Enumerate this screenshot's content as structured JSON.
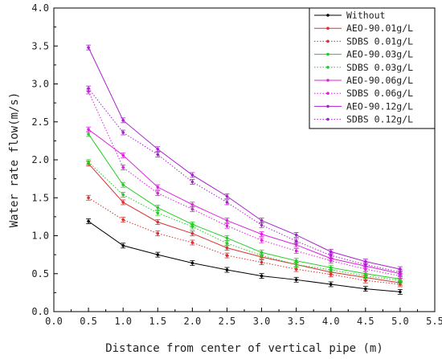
{
  "chart_data": {
    "type": "line",
    "xlabel": "Distance from center of vertical pipe (m)",
    "ylabel": "Water rate flow(m/s)",
    "xlim": [
      0.0,
      5.5
    ],
    "ylim": [
      0.0,
      4.0
    ],
    "xticks": [
      "0.0",
      "0.5",
      "1.0",
      "1.5",
      "2.0",
      "2.5",
      "3.0",
      "3.5",
      "4.0",
      "4.5",
      "5.0",
      "5.5"
    ],
    "yticks": [
      "0.0",
      "0.5",
      "1.0",
      "1.5",
      "2.0",
      "2.5",
      "3.0",
      "3.5",
      "4.0"
    ],
    "grid": false,
    "legend_position": "top-right",
    "x": [
      0.5,
      1.0,
      1.5,
      2.0,
      2.5,
      3.0,
      3.5,
      4.0,
      4.5,
      5.0
    ],
    "series": [
      {
        "name": "Without",
        "color": "#000000",
        "style": "solid",
        "values": [
          1.19,
          0.87,
          0.75,
          0.64,
          0.55,
          0.47,
          0.42,
          0.36,
          0.3,
          0.26
        ]
      },
      {
        "name": "AEO-90.01g/L",
        "color": "#d93030",
        "style": "solid",
        "values": [
          1.95,
          1.44,
          1.18,
          1.03,
          0.84,
          0.72,
          0.62,
          0.52,
          0.45,
          0.38
        ]
      },
      {
        "name": "SDBS 0.01g/L",
        "color": "#d93030",
        "style": "dotted",
        "values": [
          1.5,
          1.21,
          1.03,
          0.91,
          0.74,
          0.65,
          0.56,
          0.49,
          0.41,
          0.36
        ]
      },
      {
        "name": "AEO-90.03g/L",
        "color": "#22cc22",
        "style": "solid",
        "values": [
          2.34,
          1.67,
          1.37,
          1.15,
          0.97,
          0.78,
          0.67,
          0.58,
          0.5,
          0.43
        ]
      },
      {
        "name": "SDBS 0.03g/L",
        "color": "#22cc22",
        "style": "dotted",
        "values": [
          1.97,
          1.54,
          1.3,
          1.12,
          0.9,
          0.74,
          0.62,
          0.55,
          0.47,
          0.41
        ]
      },
      {
        "name": "AEO-90.06g/L",
        "color": "#dd22dd",
        "style": "solid",
        "values": [
          2.4,
          2.06,
          1.64,
          1.41,
          1.2,
          1.02,
          0.88,
          0.7,
          0.6,
          0.5
        ]
      },
      {
        "name": "SDBS 0.06g/L",
        "color": "#dd22dd",
        "style": "dotted",
        "values": [
          2.9,
          1.9,
          1.56,
          1.35,
          1.13,
          0.94,
          0.8,
          0.67,
          0.56,
          0.47
        ]
      },
      {
        "name": "AEO-90.12g/L",
        "color": "#a822cc",
        "style": "solid",
        "values": [
          3.48,
          2.52,
          2.14,
          1.8,
          1.52,
          1.2,
          1.01,
          0.79,
          0.66,
          0.56
        ]
      },
      {
        "name": "SDBS 0.12g/L",
        "color": "#a822cc",
        "style": "dotted",
        "values": [
          2.94,
          2.36,
          2.07,
          1.71,
          1.44,
          1.14,
          0.93,
          0.74,
          0.62,
          0.52
        ]
      }
    ]
  }
}
